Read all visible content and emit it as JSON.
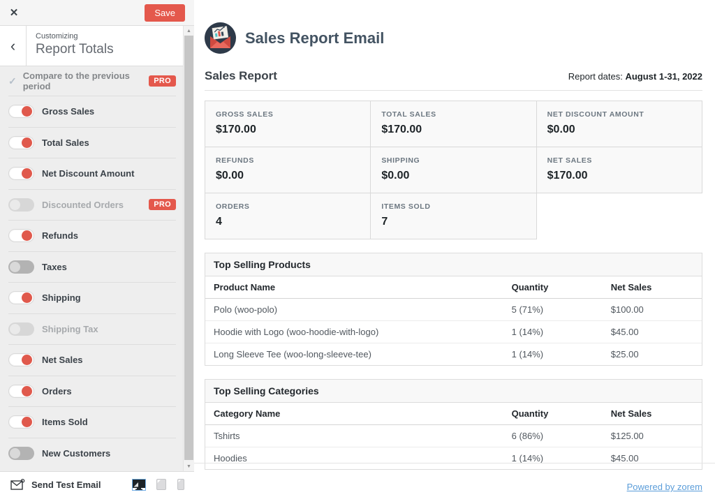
{
  "colors": {
    "accent_red": "#e4584c",
    "toggle_knob_red": "#e0594c",
    "link_blue": "#5b9dd9",
    "panel_bg": "#eeeeee",
    "dark_text": "#1d2327"
  },
  "customizer": {
    "topbar": {
      "close_icon": "✕",
      "save_label": "Save"
    },
    "header": {
      "back_icon": "‹",
      "breadcrumb": "Customizing",
      "title": "Report Totals"
    },
    "compare_row": {
      "check_icon": "✓",
      "label": "Compare to the previous period",
      "badge": "PRO"
    },
    "toggles": [
      {
        "label": "Gross Sales",
        "on": true
      },
      {
        "label": "Total Sales",
        "on": true
      },
      {
        "label": "Net Discount Amount",
        "on": true
      },
      {
        "label": "Discounted Orders",
        "on": false,
        "disabled": true,
        "badge": "PRO"
      },
      {
        "label": "Refunds",
        "on": true
      },
      {
        "label": "Taxes",
        "on": false
      },
      {
        "label": "Shipping",
        "on": true
      },
      {
        "label": "Shipping Tax",
        "on": false,
        "disabled": true
      },
      {
        "label": "Net Sales",
        "on": true
      },
      {
        "label": "Orders",
        "on": true
      },
      {
        "label": "Items Sold",
        "on": true
      },
      {
        "label": "New Customers",
        "on": false
      }
    ],
    "scrollbar": {
      "up_icon": "▲",
      "down_icon": "▼"
    },
    "footer": {
      "send_test_label": "Send Test Email"
    }
  },
  "email": {
    "app_title": "Sales Report Email",
    "report_title": "Sales Report",
    "report_dates_label": "Report dates:",
    "report_dates_value": "August 1-31, 2022",
    "stats": [
      {
        "label": "GROSS SALES",
        "value": "$170.00"
      },
      {
        "label": "TOTAL SALES",
        "value": "$170.00"
      },
      {
        "label": "NET DISCOUNT AMOUNT",
        "value": "$0.00"
      },
      {
        "label": "REFUNDS",
        "value": "$0.00"
      },
      {
        "label": "SHIPPING",
        "value": "$0.00"
      },
      {
        "label": "NET SALES",
        "value": "$170.00"
      },
      {
        "label": "ORDERS",
        "value": "4"
      },
      {
        "label": "ITEMS SOLD",
        "value": "7"
      }
    ],
    "products_table": {
      "title": "Top Selling Products",
      "columns": [
        "Product Name",
        "Quantity",
        "Net Sales"
      ],
      "rows": [
        [
          "Polo (woo-polo)",
          "5 (71%)",
          "$100.00"
        ],
        [
          "Hoodie with Logo (woo-hoodie-with-logo)",
          "1 (14%)",
          "$45.00"
        ],
        [
          "Long Sleeve Tee (woo-long-sleeve-tee)",
          "1 (14%)",
          "$25.00"
        ]
      ]
    },
    "categories_table": {
      "title": "Top Selling Categories",
      "columns": [
        "Category Name",
        "Quantity",
        "Net Sales"
      ],
      "rows": [
        [
          "Tshirts",
          "6 (86%)",
          "$125.00"
        ],
        [
          "Hoodies",
          "1 (14%)",
          "$45.00"
        ]
      ]
    },
    "powered_by": "Powered by zorem"
  }
}
